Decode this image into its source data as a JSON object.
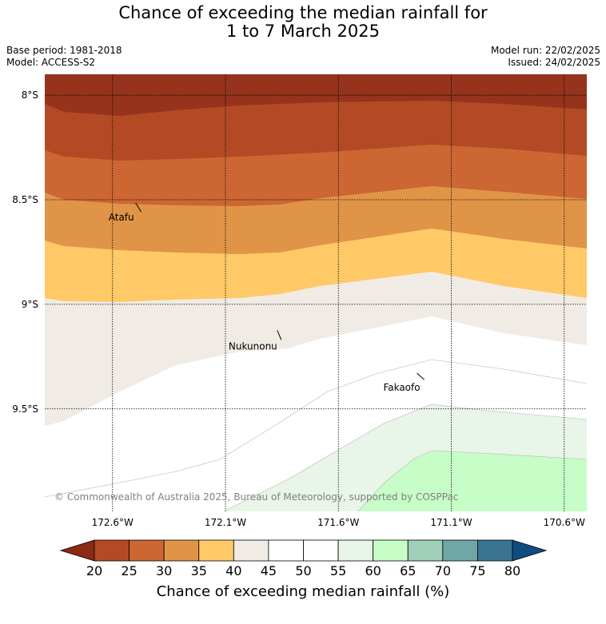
{
  "title_line1": "Chance of exceeding the median rainfall for",
  "title_line2": "1 to 7 March 2025",
  "base_period": "Base period: 1981-2018",
  "model": "Model: ACCESS-S2",
  "model_run": "Model run: 22/02/2025",
  "issued": "Issued: 24/02/2025",
  "copyright": "© Commonwealth of Australia 2025, Bureau of Meteorology, supported by COSPPac",
  "map": {
    "lon_range": [
      172.9,
      170.5
    ],
    "lat_range": [
      -7.9,
      -9.99
    ],
    "lat_ticks": [
      {
        "value": -8.0,
        "label": "8°S"
      },
      {
        "value": -8.5,
        "label": "8.5°S"
      },
      {
        "value": -9.0,
        "label": "9°S"
      },
      {
        "value": -9.5,
        "label": "9.5°S"
      }
    ],
    "lon_ticks": [
      {
        "value": 172.6,
        "label": "172.6°W"
      },
      {
        "value": 172.1,
        "label": "172.1°W"
      },
      {
        "value": 171.6,
        "label": "171.6°W"
      },
      {
        "value": 171.1,
        "label": "171.1°W"
      },
      {
        "value": 170.6,
        "label": "170.6°W"
      }
    ],
    "places": [
      {
        "name": "Atafu",
        "lon": 172.48,
        "lat": -8.55
      },
      {
        "name": "Nukunonu",
        "lon": 171.86,
        "lat": -9.17
      },
      {
        "name": "Fakaofo",
        "lon": 171.22,
        "lat": -9.36
      }
    ]
  },
  "colorbar": {
    "label": "Chance of exceeding median rainfall (%)",
    "ticks": [
      "20",
      "25",
      "30",
      "35",
      "40",
      "45",
      "50",
      "55",
      "60",
      "65",
      "70",
      "75",
      "80"
    ],
    "under_color": "#8c2a14",
    "over_color": "#0f4c81",
    "colors": [
      "#b34a25",
      "#cc6633",
      "#e09448",
      "#fec966",
      "#f0ebe5",
      "#ffffff",
      "#ffffff",
      "#e8f5e8",
      "#c7fec7",
      "#a0d0b9",
      "#6fa6a6",
      "#3b7492"
    ]
  }
}
